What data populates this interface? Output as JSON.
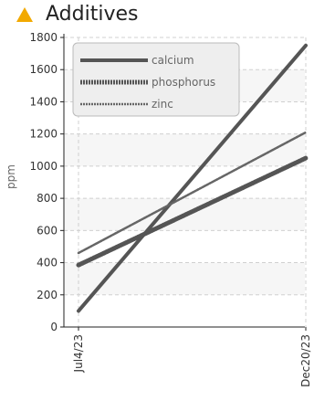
{
  "header": {
    "title": "Additives",
    "icon": "warning-triangle-icon",
    "icon_color": "#f2a900"
  },
  "chart_data": {
    "type": "line",
    "title": "Additives",
    "xlabel": "",
    "ylabel": "ppm",
    "x": [
      "Jul4/23",
      "Dec20/23"
    ],
    "ylim": [
      0,
      1800
    ],
    "yticks": [
      0,
      200,
      400,
      600,
      800,
      1000,
      1200,
      1400,
      1600,
      1800
    ],
    "grid": true,
    "legend_position": "top-left",
    "series": [
      {
        "name": "calcium",
        "values": [
          100,
          1750
        ],
        "color": "#555555",
        "style": "solid"
      },
      {
        "name": "phosphorus",
        "values": [
          385,
          1050
        ],
        "color": "#555555",
        "style": "dotted-thick"
      },
      {
        "name": "zinc",
        "values": [
          460,
          1210
        ],
        "color": "#666666",
        "style": "dotted-thin"
      }
    ]
  }
}
